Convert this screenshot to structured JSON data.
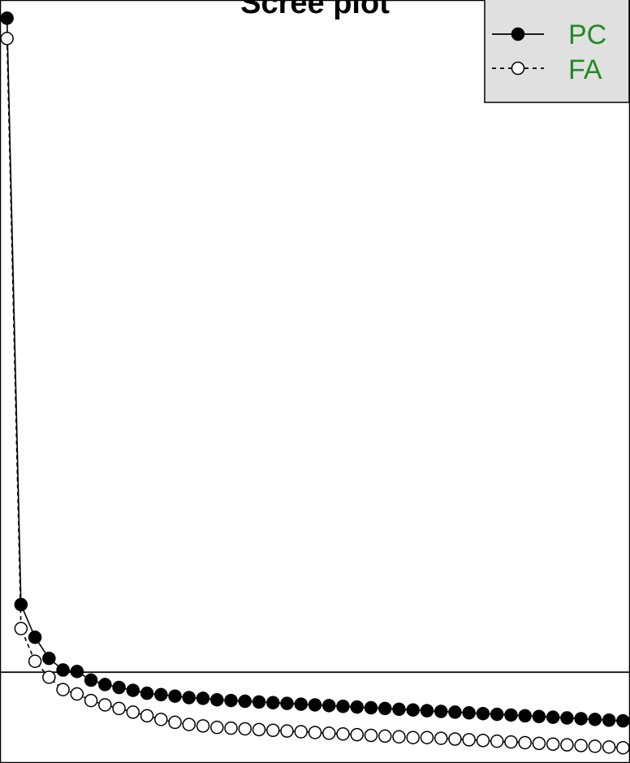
{
  "colors": {
    "legend_text": "#228B22",
    "legend_background": "#e0e0e0",
    "markers": "#000000"
  },
  "chart_data": {
    "type": "scatter",
    "title": "Scree plot",
    "xlabel": "",
    "ylabel": "",
    "xlim": [
      0.5,
      45.5
    ],
    "ylim": [
      -0.25,
      10.25
    ],
    "grid": false,
    "reference_line": {
      "y": 1
    },
    "legend": {
      "position": "top-right"
    },
    "x": [
      1,
      2,
      3,
      4,
      5,
      6,
      7,
      8,
      9,
      10,
      11,
      12,
      13,
      14,
      15,
      16,
      17,
      18,
      19,
      20,
      21,
      22,
      23,
      24,
      25,
      26,
      27,
      28,
      29,
      30,
      31,
      32,
      33,
      34,
      35,
      36,
      37,
      38,
      39,
      40,
      41,
      42,
      43,
      44,
      45
    ],
    "series": [
      {
        "name": "PC",
        "line_style": "solid",
        "marker": "filled-circle",
        "values": [
          10.0,
          1.93,
          1.48,
          1.19,
          1.03,
          1.01,
          0.89,
          0.83,
          0.79,
          0.75,
          0.71,
          0.69,
          0.67,
          0.65,
          0.64,
          0.62,
          0.61,
          0.6,
          0.59,
          0.58,
          0.57,
          0.56,
          0.55,
          0.54,
          0.53,
          0.52,
          0.51,
          0.5,
          0.49,
          0.48,
          0.47,
          0.46,
          0.45,
          0.44,
          0.43,
          0.42,
          0.41,
          0.4,
          0.39,
          0.38,
          0.37,
          0.36,
          0.35,
          0.34,
          0.33
        ]
      },
      {
        "name": "FA",
        "line_style": "dashed",
        "marker": "open-circle",
        "values": [
          9.72,
          1.6,
          1.15,
          0.93,
          0.76,
          0.7,
          0.61,
          0.55,
          0.5,
          0.45,
          0.4,
          0.35,
          0.31,
          0.28,
          0.26,
          0.24,
          0.23,
          0.22,
          0.21,
          0.2,
          0.19,
          0.18,
          0.17,
          0.16,
          0.15,
          0.14,
          0.13,
          0.12,
          0.11,
          0.1,
          0.1,
          0.09,
          0.08,
          0.07,
          0.06,
          0.05,
          0.04,
          0.03,
          0.02,
          0.01,
          0.0,
          -0.01,
          -0.02,
          -0.03,
          -0.04
        ]
      }
    ]
  }
}
